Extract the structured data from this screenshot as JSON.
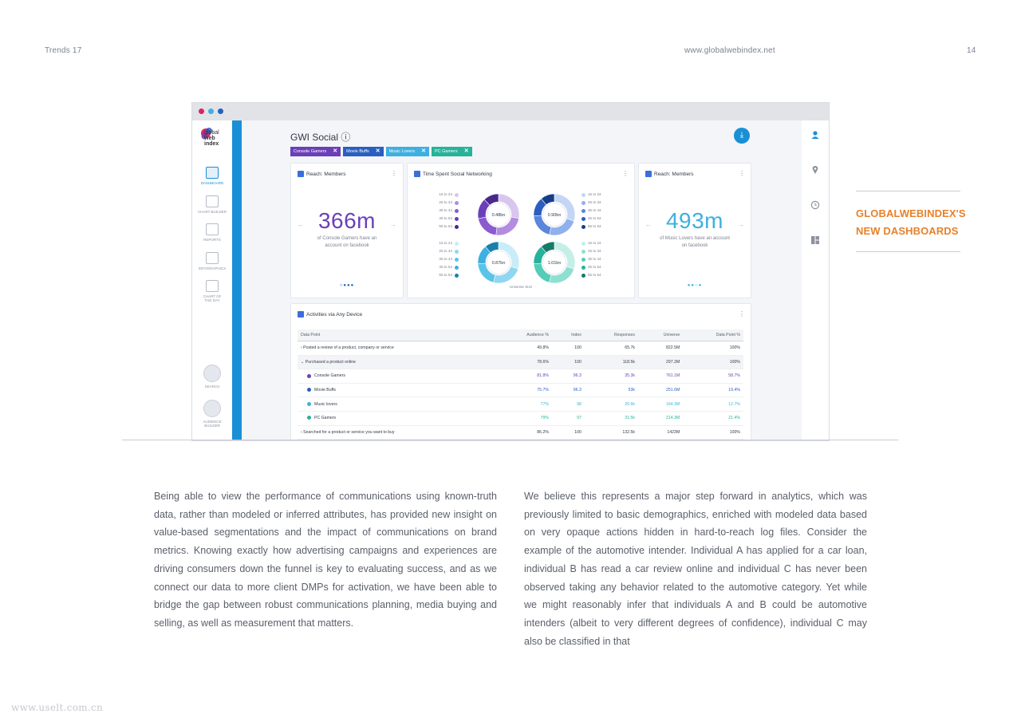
{
  "header": {
    "left": "Trends 17",
    "center": "www.globalwebindex.net",
    "page_number": "14"
  },
  "browser_dots": [
    "#d6246e",
    "#3db0e0",
    "#2a5fbf"
  ],
  "logo": {
    "text_lines": [
      "global",
      "web",
      "index"
    ]
  },
  "nav": {
    "items": [
      {
        "label": "DASHBOARD",
        "active": true
      },
      {
        "label": "CHART BUILDER"
      },
      {
        "label": "REPORTS"
      },
      {
        "label": "INFOGRAPHICS"
      },
      {
        "label": "CHART OF THE DAY"
      }
    ],
    "search_label": "SEARCH",
    "audience_label": "AUDIENCE BUILDER"
  },
  "right_icons": [
    "user-icon",
    "location-icon",
    "clock-icon",
    "dashboard-icon"
  ],
  "dashboard": {
    "title": "GWI Social ⓘ",
    "download_icon": "download-icon",
    "chips": [
      {
        "label": "Console Gamers",
        "color": "#6b3fb8"
      },
      {
        "label": "Movie Buffs",
        "color": "#2a5fbf"
      },
      {
        "label": "Music Lovers",
        "color": "#3db0e0"
      },
      {
        "label": "PC Gamers",
        "color": "#26b39a"
      }
    ],
    "reach1": {
      "title": "Reach: Members",
      "value": "366m",
      "caption": "of Console Gamers have an account on facebook",
      "pager": "○●●●"
    },
    "time_spent": {
      "title": "Time Spent Social Networking",
      "age_groups": [
        "16 to 24",
        "25 to 34",
        "35 to 44",
        "45 to 54",
        "55 to 64"
      ],
      "donuts": [
        {
          "center": "0.48bn",
          "colors": [
            "#d9c6ef",
            "#b38be0",
            "#8b5bd0",
            "#6b3fb8",
            "#4a278a"
          ],
          "shares": [
            0.28,
            0.24,
            0.2,
            0.16,
            0.12
          ]
        },
        {
          "center": "0.90bn",
          "colors": [
            "#c4d6f5",
            "#8fb0ec",
            "#5a86dc",
            "#2a5fbf",
            "#173d8a"
          ],
          "shares": [
            0.3,
            0.24,
            0.2,
            0.15,
            0.11
          ]
        },
        {
          "center": "0.87bn",
          "colors": [
            "#c8ecf8",
            "#8fd7f0",
            "#5ac4e8",
            "#3db0e0",
            "#1a7fad"
          ],
          "shares": [
            0.3,
            0.24,
            0.2,
            0.15,
            0.11
          ]
        },
        {
          "center": "1.01bn",
          "colors": [
            "#c4efe6",
            "#8de0d0",
            "#55cdb6",
            "#26b39a",
            "#157a68"
          ],
          "shares": [
            0.3,
            0.24,
            0.2,
            0.15,
            0.11
          ]
        }
      ],
      "legend_left_top": "#6b3fb8",
      "footer": "Universe Size"
    },
    "reach2": {
      "title": "Reach: Members",
      "value": "493m",
      "caption": "of Music Lovers have an account on facebook",
      "pager": "●●○●"
    },
    "activities": {
      "title": "Activities via Any Device",
      "columns": [
        "Data Point",
        "Audience %",
        "Index",
        "Responses",
        "Universe",
        "Data Point %"
      ],
      "rows": [
        {
          "cells": [
            "› Posted a review of a product, company or service",
            "49.8%",
            "100",
            "65.7k",
            "822.5M",
            "100%"
          ]
        },
        {
          "cells": [
            "⌄ Purchased a product online",
            "78.6%",
            "100",
            "118.5k",
            "297.2M",
            "100%"
          ],
          "highlight": true
        },
        {
          "cells": [
            "Console Gamers",
            "81.8%",
            "96.3",
            "35.3k",
            "761.1M",
            "58.7%"
          ],
          "sub": true,
          "color": "#6b3fb8"
        },
        {
          "cells": [
            "Movie Buffs",
            "75.7%",
            "96.3",
            "53k",
            "251.6M",
            "19.4%"
          ],
          "sub": true,
          "color": "#2a5fbf"
        },
        {
          "cells": [
            "Music lovers",
            "77%",
            "98",
            "20.6k",
            "164.3M",
            "12.7%"
          ],
          "sub": true,
          "color": "#3db0e0"
        },
        {
          "cells": [
            "PC Gamers",
            "79%",
            "97",
            "31.5k",
            "214.3M",
            "21.4%"
          ],
          "sub": true,
          "color": "#26b39a"
        },
        {
          "cells": [
            "› Searched for a product or service you want to buy",
            "86.2%",
            "100",
            "132.5k",
            "1423M",
            "100%"
          ]
        }
      ]
    }
  },
  "side_heading": [
    "GLOBALWEBINDEX'S",
    "NEW DASHBOARDS"
  ],
  "accent_color": "#e8812a",
  "body_text": {
    "left": "Being able to view the performance of communications using known-truth data, rather than modeled or inferred attributes, has provided new insight on value-based segmentations and the impact of communications on brand metrics. Knowing exactly how advertising campaigns and experiences are driving consumers down the funnel is key to evaluating success, and as we connect our data to more client DMPs for activation, we have been able to bridge the gap between robust communications planning, media buying and selling, as well as measurement that matters.",
    "right": "We believe this represents a major step forward in analytics, which was previously limited to basic demographics, enriched with modeled data based on very opaque actions hidden in hard-to-reach log files. Consider the example of the automotive intender. Individual A has applied for a car loan, individual B has read a car review online and individual C has never been observed taking any behavior related to the automotive category. Yet while we might reasonably infer that individuals A and B could be automotive intenders (albeit to very different degrees of confidence), individual C may also be classified in that"
  },
  "watermark": "www.uselt.com.cn"
}
